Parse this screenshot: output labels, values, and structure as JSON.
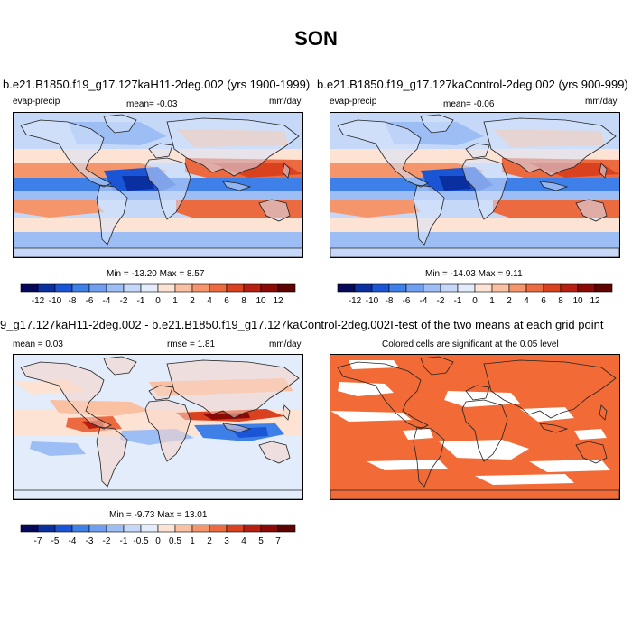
{
  "season": "SON",
  "panels": [
    {
      "title": "b.e21.B1850.f19_g17.127kaH11-2deg.002 (yrs 1900-1999)",
      "variable": "evap-precip",
      "stat_text": "mean=  -0.03",
      "units": "mm/day",
      "minmax": "Min = -13.20 Max =  8.57"
    },
    {
      "title": "b.e21.B1850.f19_g17.127kaControl-2deg.002 (yrs 900-999)",
      "variable": "evap-precip",
      "stat_text": "mean=  -0.06",
      "units": "mm/day",
      "minmax": "Min = -14.03 Max =  9.11"
    },
    {
      "title": "9_g17.127kaH11-2deg.002 - b.e21.B1850.f19_g17.127kaControl-2deg.002",
      "mean_text": "mean =  0.03",
      "rmse_text": "rmse =   1.81",
      "units": "mm/day",
      "minmax": "Min = -9.73 Max = 13.01"
    },
    {
      "title": "T-test of the two means at each grid point",
      "subtitle": "Colored cells are significant at the 0.05 level"
    }
  ],
  "colorbars": {
    "main": {
      "labels": [
        "-12",
        "-10",
        "-8",
        "-6",
        "-4",
        "-2",
        "-1",
        "0",
        "1",
        "2",
        "4",
        "6",
        "8",
        "10",
        "12"
      ],
      "colors": [
        "#08085a",
        "#0a2fa0",
        "#1a55d6",
        "#3f7fe8",
        "#6f9ff0",
        "#9dbef5",
        "#c6d8f8",
        "#e3ecfb",
        "#fde3d3",
        "#f9c0a2",
        "#f4956b",
        "#ec6a40",
        "#d9411f",
        "#b81f10",
        "#8c0a06",
        "#5e0202"
      ]
    },
    "diff": {
      "labels": [
        "-7",
        "-5",
        "-4",
        "-3",
        "-2",
        "-1",
        "-0.5",
        "0",
        "0.5",
        "1",
        "2",
        "3",
        "4",
        "5",
        "7"
      ],
      "colors": [
        "#08085a",
        "#0a2fa0",
        "#1a55d6",
        "#3f7fe8",
        "#6f9ff0",
        "#9dbef5",
        "#c6d8f8",
        "#e3ecfb",
        "#fde3d3",
        "#f9c0a2",
        "#f4956b",
        "#ec6a40",
        "#d9411f",
        "#b81f10",
        "#8c0a06",
        "#5e0202"
      ]
    }
  },
  "ttest_color": "#f26a35"
}
